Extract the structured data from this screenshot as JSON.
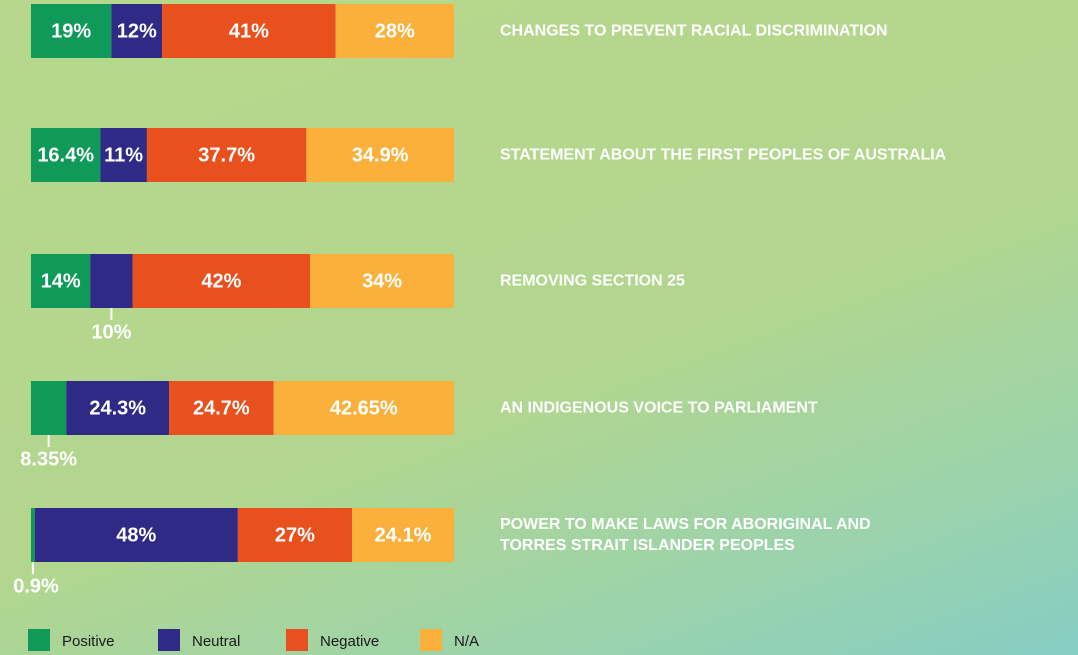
{
  "chart_data": {
    "type": "stacked-bar-horizontal",
    "categories": [
      "CHANGES TO PREVENT RACIAL DISCRIMINATION",
      "STATEMENT ABOUT THE FIRST PEOPLES OF AUSTRALIA",
      "REMOVING SECTION 25",
      "AN INDIGENOUS VOICE TO PARLIAMENT",
      "POWER TO MAKE LAWS FOR ABORIGINAL AND\nTORRES STRAIT ISLANDER PEOPLES"
    ],
    "series": [
      {
        "name": "Positive",
        "color": "#0f9a5a",
        "values": [
          19,
          16.4,
          14,
          8.35,
          0.9
        ],
        "value_labels": [
          "19%",
          "16.4%",
          "14%",
          "8.35%",
          "0.9%"
        ]
      },
      {
        "name": "Neutral",
        "color": "#2e2a86",
        "values": [
          12,
          11,
          10,
          24.3,
          48
        ],
        "value_labels": [
          "12%",
          "11%",
          "10%",
          "24.3%",
          "48%"
        ]
      },
      {
        "name": "Negative",
        "color": "#e8501e",
        "values": [
          41,
          37.7,
          42,
          24.7,
          27
        ],
        "value_labels": [
          "41%",
          "37.7%",
          "42%",
          "24.7%",
          "27%"
        ]
      },
      {
        "name": "N/A",
        "color": "#fbb03b",
        "values": [
          28,
          34.9,
          34,
          42.65,
          24.1
        ],
        "value_labels": [
          "28%",
          "34.9%",
          "34%",
          "42.65%",
          "24.1%"
        ]
      }
    ],
    "legend": "bottom-left"
  }
}
